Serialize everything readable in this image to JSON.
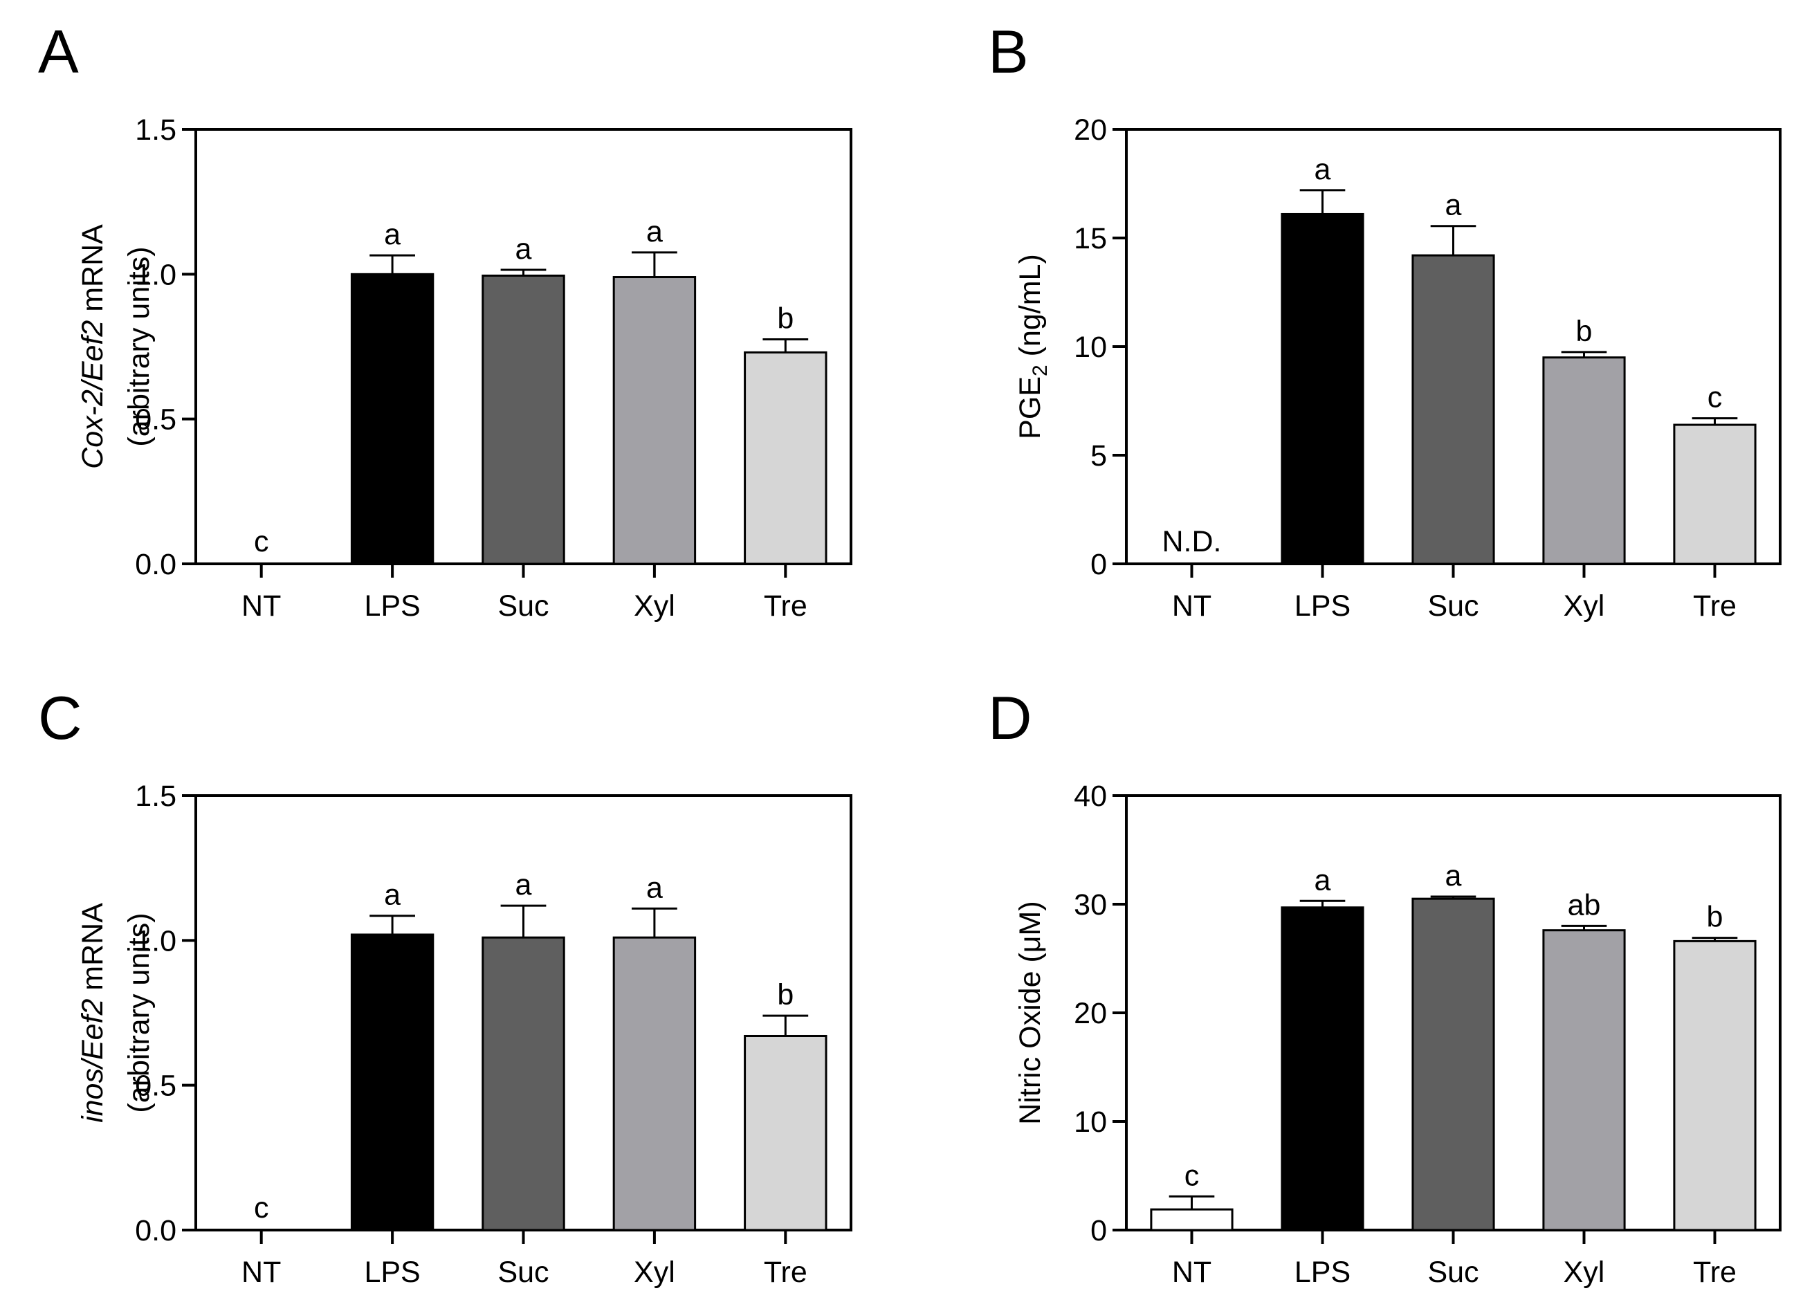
{
  "chart_data": [
    {
      "panel": "A",
      "type": "bar",
      "categories": [
        "NT",
        "LPS",
        "Suc",
        "Xyl",
        "Tre"
      ],
      "values": [
        0,
        1.0,
        0.995,
        0.99,
        0.73
      ],
      "errors": [
        0,
        0.065,
        0.02,
        0.085,
        0.045
      ],
      "letters": [
        "c",
        "a",
        "a",
        "a",
        "b"
      ],
      "colors": [
        "#ffffff",
        "#000000",
        "#5f5f5f",
        "#a2a1a6",
        "#d6d6d6"
      ],
      "ylabel_italic": "Cox-2/Eef2",
      "ylabel_rest": " mRNA",
      "ylabel_line2": "(arbitrary units)",
      "ylim": [
        0,
        1.5
      ],
      "yticks": [
        0,
        0.5,
        1.0,
        1.5
      ],
      "yticklabels": [
        "0.0",
        "0.5",
        "1.0",
        "1.5"
      ]
    },
    {
      "panel": "B",
      "type": "bar",
      "categories": [
        "NT",
        "LPS",
        "Suc",
        "Xyl",
        "Tre"
      ],
      "values": [
        0,
        16.1,
        14.2,
        9.5,
        6.4
      ],
      "errors": [
        0,
        1.1,
        1.35,
        0.25,
        0.3
      ],
      "letters": [
        "N.D.",
        "a",
        "a",
        "b",
        "c"
      ],
      "colors": [
        "#ffffff",
        "#000000",
        "#5f5f5f",
        "#a2a1a6",
        "#d6d6d6"
      ],
      "ylabel_main": "PGE",
      "ylabel_sub": "2",
      "ylabel_rest": " (ng/mL)",
      "ylim": [
        0,
        20
      ],
      "yticks": [
        0,
        5,
        10,
        15,
        20
      ],
      "yticklabels": [
        "0",
        "5",
        "10",
        "15",
        "20"
      ]
    },
    {
      "panel": "C",
      "type": "bar",
      "categories": [
        "NT",
        "LPS",
        "Suc",
        "Xyl",
        "Tre"
      ],
      "values": [
        0,
        1.02,
        1.01,
        1.01,
        0.67
      ],
      "errors": [
        0,
        0.065,
        0.11,
        0.1,
        0.07
      ],
      "letters": [
        "c",
        "a",
        "a",
        "a",
        "b"
      ],
      "colors": [
        "#ffffff",
        "#000000",
        "#5f5f5f",
        "#a2a1a6",
        "#d6d6d6"
      ],
      "ylabel_italic": "inos/Eef2",
      "ylabel_rest": " mRNA",
      "ylabel_line2": "(arbitrary units)",
      "ylim": [
        0,
        1.5
      ],
      "yticks": [
        0,
        0.5,
        1.0,
        1.5
      ],
      "yticklabels": [
        "0.0",
        "0.5",
        "1.0",
        "1.5"
      ]
    },
    {
      "panel": "D",
      "type": "bar",
      "categories": [
        "NT",
        "LPS",
        "Suc",
        "Xyl",
        "Tre"
      ],
      "values": [
        1.9,
        29.7,
        30.5,
        27.6,
        26.6
      ],
      "errors": [
        1.2,
        0.6,
        0.2,
        0.4,
        0.3
      ],
      "letters": [
        "c",
        "a",
        "a",
        "ab",
        "b"
      ],
      "colors": [
        "#ffffff",
        "#000000",
        "#5f5f5f",
        "#a2a1a6",
        "#d6d6d6"
      ],
      "ylabel": "Nitric Oxide (μM)",
      "ylim": [
        0,
        40
      ],
      "yticks": [
        0,
        10,
        20,
        30,
        40
      ],
      "yticklabels": [
        "0",
        "10",
        "20",
        "30",
        "40"
      ]
    }
  ]
}
